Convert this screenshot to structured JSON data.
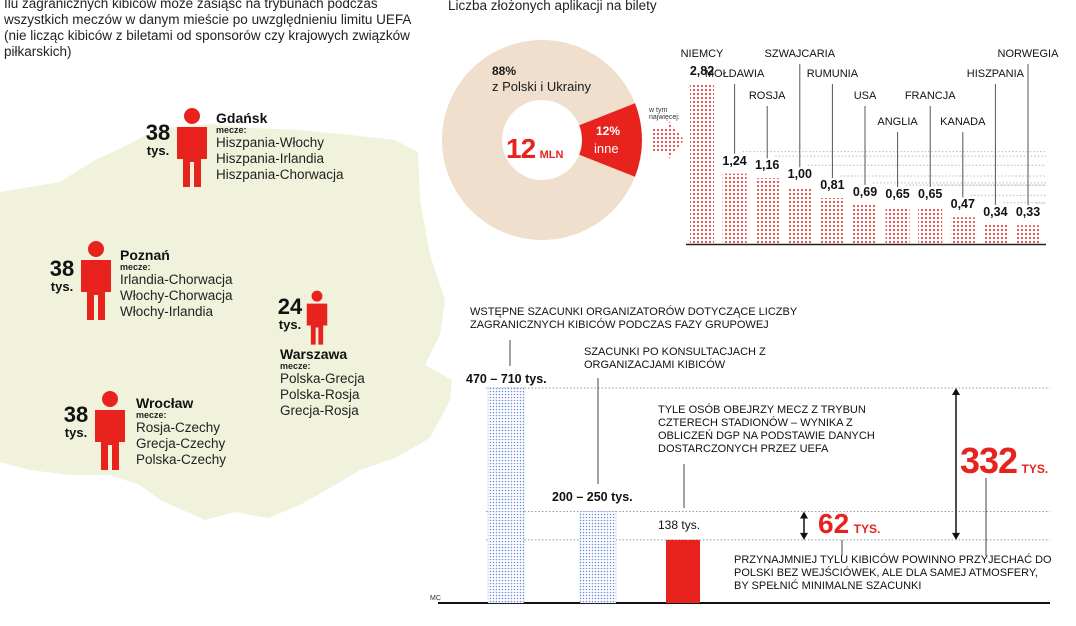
{
  "intro_text": "Ilu zagranicznych kibiców może zasiąść na trybunach podczas wszystkich meczów w danym mieście po uwzględnieniu limitu UEFA (nie licząc kibiców z biletami od sponsorów czy krajowych związków piłkarskich)",
  "cities": [
    {
      "number": "38",
      "unit": "tys.",
      "name": "Gdańsk",
      "matches_label": "mecze:",
      "matches": [
        "Hiszpania-Włochy",
        "Hiszpania-Irlandia",
        "Hiszpania-Chorwacja"
      ]
    },
    {
      "number": "38",
      "unit": "tys.",
      "name": "Poznań",
      "matches_label": "mecze:",
      "matches": [
        "Irlandia-Chorwacja",
        "Włochy-Chorwacja",
        "Włochy-Irlandia"
      ]
    },
    {
      "number": "24",
      "unit": "tys.",
      "name": "Warszawa",
      "matches_label": "mecze:",
      "matches": [
        "Polska-Grecja",
        "Polska-Rosja",
        "Grecja-Rosja"
      ]
    },
    {
      "number": "38",
      "unit": "tys.",
      "name": "Wrocław",
      "matches_label": "mecze:",
      "matches": [
        "Rosja-Czechy",
        "Grecja-Czechy",
        "Polska-Czechy"
      ]
    }
  ],
  "colors": {
    "red": "#e8231e",
    "beige": "#efe9d9",
    "map": "#f0f2dc",
    "pie_beige": "#efdfcc",
    "blue": "#6f8fd6",
    "dots": "#d98a8a"
  },
  "chart_data": [
    {
      "type": "pie",
      "title": "Liczba złożonych aplikacji na bilety",
      "center_number": "12",
      "center_unit": "MLN",
      "slices": [
        {
          "label": "z Polski i Ukrainy",
          "value": 88,
          "value_label": "88%"
        },
        {
          "label": "inne",
          "value": 12,
          "value_label": "12%"
        }
      ],
      "arrow_label": "w tym najwięcej:"
    },
    {
      "type": "bar",
      "unit": "mln",
      "categories": [
        "NIEMCY",
        "MOŁDAWIA",
        "ROSJA",
        "SZWAJCARIA",
        "RUMUNIA",
        "USA",
        "ANGLIA",
        "FRANCJA",
        "KANADA",
        "HISZPANIA",
        "NORWEGIA"
      ],
      "values": [
        2.82,
        1.24,
        1.16,
        1.0,
        0.81,
        0.69,
        0.65,
        0.65,
        0.47,
        0.34,
        0.33
      ],
      "value_labels": [
        "2,82",
        "1,24",
        "1,16",
        "1,00",
        "0,81",
        "0,69",
        "0,65",
        "0,65",
        "0,47",
        "0,34",
        "0,33"
      ],
      "ylim": [
        0,
        3
      ]
    },
    {
      "type": "bar",
      "unit": "tys.",
      "bars": [
        {
          "label": "470 – 710 tys.",
          "low": 470,
          "high": 710,
          "note": "WSTĘPNE SZACUNKI ORGANIZATORÓW DOTYCZĄCE LICZBY ZAGRANICZNYCH KIBICÓW PODCZAS FAZY GRUPOWEJ"
        },
        {
          "label": "200 – 250 tys.",
          "low": 200,
          "high": 250,
          "note": "SZACUNKI PO KONSULTACJACH Z ORGANIZACJAMI KIBICÓW"
        },
        {
          "label": "138 tys.",
          "low": 138,
          "high": 138,
          "note": "TYLE OSÓB OBEJRZY MECZ Z TRYBUN CZTERECH STADIONÓW – WYNIKA Z OBLICZEŃ DGP NA PODSTAWIE DANYCH DOSTARCZONYCH PRZEZ UEFA"
        }
      ],
      "ref_lines": [
        470,
        200,
        138
      ],
      "diff_small": {
        "number": "62",
        "unit": "TYS."
      },
      "diff_large": {
        "number": "332",
        "unit": "TYS."
      },
      "bottom_note": "PRZYNAJMNIEJ TYLU KIBICÓW POWINNO PRZYJECHAĆ DO POLSKI BEZ WEJŚCIÓWEK, ALE DLA SAMEJ ATMOSFERY, BY SPEŁNIĆ MINIMALNE SZACUNKI",
      "ylim": [
        0,
        500
      ]
    }
  ],
  "credit": "MC"
}
